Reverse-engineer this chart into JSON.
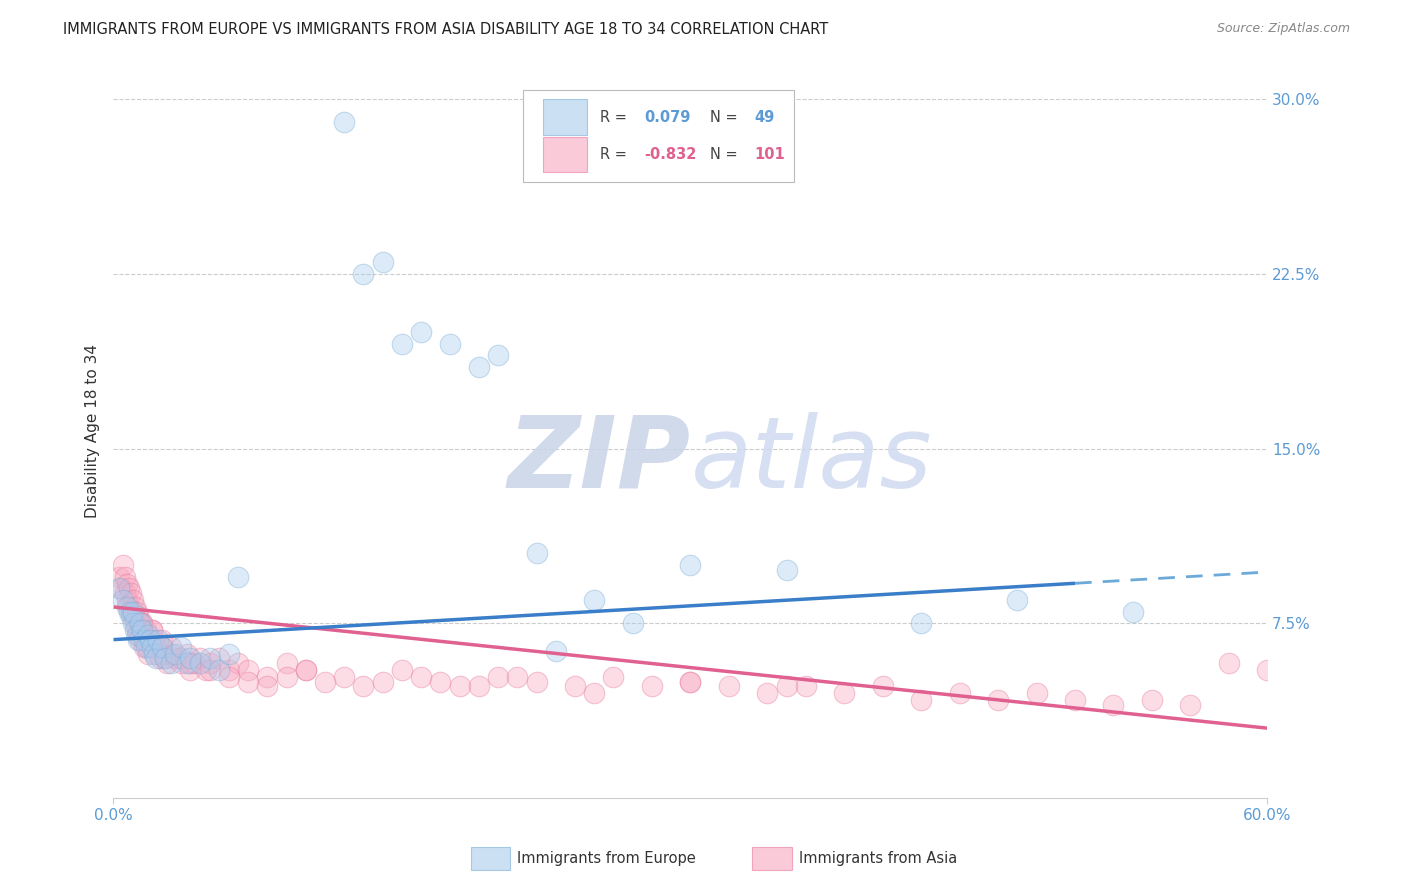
{
  "title": "IMMIGRANTS FROM EUROPE VS IMMIGRANTS FROM ASIA DISABILITY AGE 18 TO 34 CORRELATION CHART",
  "source": "Source: ZipAtlas.com",
  "ylabel": "Disability Age 18 to 34",
  "xlim": [
    0.0,
    0.6
  ],
  "ylim": [
    0.0,
    0.315
  ],
  "xtick_vals": [
    0.0,
    0.6
  ],
  "xtick_labels": [
    "0.0%",
    "60.0%"
  ],
  "ytick_vals": [
    0.075,
    0.15,
    0.225,
    0.3
  ],
  "ytick_labels": [
    "7.5%",
    "15.0%",
    "22.5%",
    "30.0%"
  ],
  "grid_color": "#cccccc",
  "background_color": "#ffffff",
  "europe_color": "#aaccee",
  "europe_edge_color": "#7aadd4",
  "asia_color": "#f8a8c0",
  "asia_edge_color": "#e87aa0",
  "europe_R": "0.079",
  "europe_N": "49",
  "asia_R": "-0.832",
  "asia_N": "101",
  "europe_trend_color": "#3a7dc9",
  "europe_trend_color_dashed": "#6baad8",
  "asia_trend_color": "#e06090",
  "watermark_zip_color": "#c8d4e8",
  "watermark_atlas_color": "#d0daf0",
  "legend_europe_label": "Immigrants from Europe",
  "legend_asia_label": "Immigrants from Asia",
  "europe_x": [
    0.003,
    0.005,
    0.007,
    0.008,
    0.009,
    0.01,
    0.01,
    0.011,
    0.012,
    0.013,
    0.014,
    0.015,
    0.016,
    0.017,
    0.018,
    0.019,
    0.02,
    0.021,
    0.022,
    0.023,
    0.025,
    0.027,
    0.03,
    0.032,
    0.035,
    0.038,
    0.04,
    0.045,
    0.05,
    0.055,
    0.06,
    0.065,
    0.12,
    0.13,
    0.14,
    0.15,
    0.16,
    0.175,
    0.19,
    0.2,
    0.22,
    0.23,
    0.25,
    0.27,
    0.3,
    0.35,
    0.42,
    0.47,
    0.53
  ],
  "europe_y": [
    0.09,
    0.085,
    0.082,
    0.08,
    0.078,
    0.075,
    0.08,
    0.072,
    0.07,
    0.068,
    0.075,
    0.072,
    0.068,
    0.065,
    0.07,
    0.068,
    0.065,
    0.062,
    0.06,
    0.068,
    0.065,
    0.06,
    0.058,
    0.062,
    0.065,
    0.058,
    0.06,
    0.058,
    0.06,
    0.055,
    0.062,
    0.095,
    0.29,
    0.225,
    0.23,
    0.195,
    0.2,
    0.195,
    0.185,
    0.19,
    0.105,
    0.063,
    0.085,
    0.075,
    0.1,
    0.098,
    0.075,
    0.085,
    0.08
  ],
  "asia_x": [
    0.003,
    0.004,
    0.005,
    0.006,
    0.006,
    0.007,
    0.007,
    0.008,
    0.008,
    0.009,
    0.009,
    0.01,
    0.01,
    0.011,
    0.011,
    0.012,
    0.012,
    0.013,
    0.013,
    0.014,
    0.014,
    0.015,
    0.015,
    0.016,
    0.016,
    0.017,
    0.017,
    0.018,
    0.018,
    0.019,
    0.02,
    0.021,
    0.022,
    0.023,
    0.024,
    0.025,
    0.026,
    0.027,
    0.028,
    0.03,
    0.032,
    0.035,
    0.038,
    0.04,
    0.042,
    0.045,
    0.048,
    0.05,
    0.055,
    0.06,
    0.065,
    0.07,
    0.08,
    0.09,
    0.1,
    0.12,
    0.14,
    0.16,
    0.18,
    0.2,
    0.22,
    0.24,
    0.26,
    0.28,
    0.3,
    0.32,
    0.34,
    0.36,
    0.38,
    0.4,
    0.42,
    0.44,
    0.46,
    0.48,
    0.5,
    0.52,
    0.54,
    0.56,
    0.58,
    0.6,
    0.015,
    0.02,
    0.025,
    0.03,
    0.035,
    0.04,
    0.05,
    0.06,
    0.07,
    0.08,
    0.09,
    0.1,
    0.11,
    0.13,
    0.15,
    0.17,
    0.19,
    0.21,
    0.25,
    0.3,
    0.35
  ],
  "asia_y": [
    0.095,
    0.09,
    0.1,
    0.095,
    0.088,
    0.092,
    0.085,
    0.09,
    0.082,
    0.088,
    0.08,
    0.085,
    0.078,
    0.082,
    0.075,
    0.08,
    0.072,
    0.078,
    0.07,
    0.075,
    0.068,
    0.075,
    0.072,
    0.07,
    0.065,
    0.072,
    0.068,
    0.065,
    0.062,
    0.068,
    0.072,
    0.068,
    0.065,
    0.062,
    0.06,
    0.065,
    0.062,
    0.06,
    0.058,
    0.062,
    0.06,
    0.058,
    0.062,
    0.055,
    0.058,
    0.06,
    0.055,
    0.058,
    0.06,
    0.055,
    0.058,
    0.055,
    0.052,
    0.058,
    0.055,
    0.052,
    0.05,
    0.052,
    0.048,
    0.052,
    0.05,
    0.048,
    0.052,
    0.048,
    0.05,
    0.048,
    0.045,
    0.048,
    0.045,
    0.048,
    0.042,
    0.045,
    0.042,
    0.045,
    0.042,
    0.04,
    0.042,
    0.04,
    0.058,
    0.055,
    0.075,
    0.072,
    0.068,
    0.065,
    0.06,
    0.058,
    0.055,
    0.052,
    0.05,
    0.048,
    0.052,
    0.055,
    0.05,
    0.048,
    0.055,
    0.05,
    0.048,
    0.052,
    0.045,
    0.05,
    0.048
  ]
}
